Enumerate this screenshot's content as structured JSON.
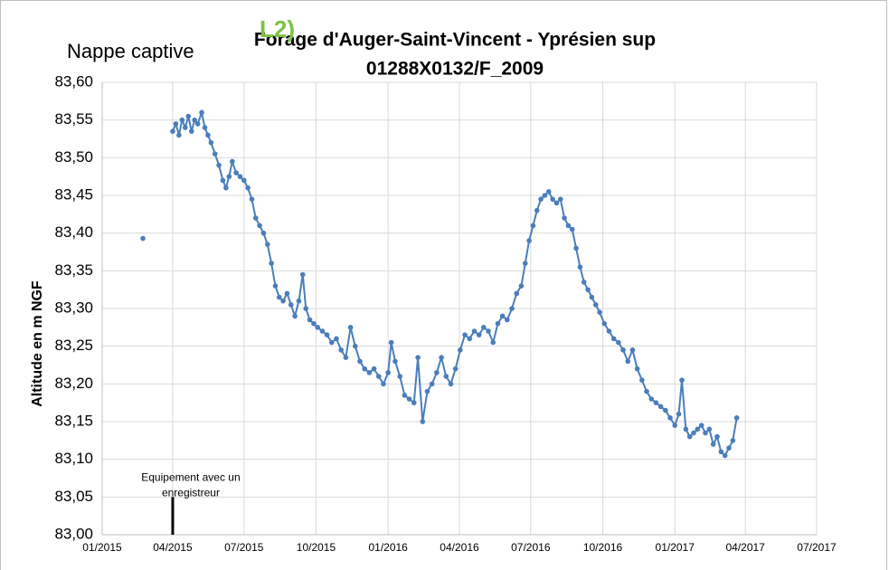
{
  "chart_data": {
    "type": "line",
    "title": "Forage d'Auger-Saint-Vincent - Yprésien sup",
    "subtitle": "01288X0132/F_2009",
    "badge": "L2)",
    "side_label": "Nappe captive",
    "y_label": "Altitude en m NGF",
    "annotation": {
      "text": "Equipement avec un enregistreur",
      "x": "2015-04-01",
      "y": [
        83.0,
        83.05
      ],
      "color": "#000000"
    },
    "grid": true,
    "xlim": [
      "2015-01-01",
      "2017-07-01"
    ],
    "xticks": [
      {
        "value": "2015-01-01",
        "label": "01/2015"
      },
      {
        "value": "2015-04-01",
        "label": "04/2015"
      },
      {
        "value": "2015-07-01",
        "label": "07/2015"
      },
      {
        "value": "2015-10-01",
        "label": "10/2015"
      },
      {
        "value": "2016-01-01",
        "label": "01/2016"
      },
      {
        "value": "2016-04-01",
        "label": "04/2016"
      },
      {
        "value": "2016-07-01",
        "label": "07/2016"
      },
      {
        "value": "2016-10-01",
        "label": "10/2016"
      },
      {
        "value": "2017-01-01",
        "label": "01/2017"
      },
      {
        "value": "2017-04-01",
        "label": "04/2017"
      },
      {
        "value": "2017-07-01",
        "label": "07/2017"
      }
    ],
    "ylim": [
      83.0,
      83.6
    ],
    "yticks": [
      {
        "value": 83.0,
        "label": "83,00"
      },
      {
        "value": 83.05,
        "label": "83,05"
      },
      {
        "value": 83.1,
        "label": "83,10"
      },
      {
        "value": 83.15,
        "label": "83,15"
      },
      {
        "value": 83.2,
        "label": "83,20"
      },
      {
        "value": 83.25,
        "label": "83,25"
      },
      {
        "value": 83.3,
        "label": "83,30"
      },
      {
        "value": 83.35,
        "label": "83,35"
      },
      {
        "value": 83.4,
        "label": "83,40"
      },
      {
        "value": 83.45,
        "label": "83,45"
      },
      {
        "value": 83.5,
        "label": "83,50"
      },
      {
        "value": 83.55,
        "label": "83,55"
      },
      {
        "value": 83.6,
        "label": "83,60"
      }
    ],
    "x": [
      "2015-02-22",
      "2015-03-15",
      "2015-04-01",
      "2015-04-05",
      "2015-04-09",
      "2015-04-13",
      "2015-04-17",
      "2015-04-21",
      "2015-04-25",
      "2015-04-29",
      "2015-05-03",
      "2015-05-08",
      "2015-05-12",
      "2015-05-16",
      "2015-05-20",
      "2015-05-25",
      "2015-05-30",
      "2015-06-04",
      "2015-06-08",
      "2015-06-12",
      "2015-06-16",
      "2015-06-21",
      "2015-06-26",
      "2015-07-01",
      "2015-07-06",
      "2015-07-11",
      "2015-07-16",
      "2015-07-21",
      "2015-07-26",
      "2015-07-31",
      "2015-08-05",
      "2015-08-10",
      "2015-08-15",
      "2015-08-20",
      "2015-08-25",
      "2015-08-30",
      "2015-09-04",
      "2015-09-09",
      "2015-09-14",
      "2015-09-18",
      "2015-09-23",
      "2015-09-28",
      "2015-10-03",
      "2015-10-09",
      "2015-10-15",
      "2015-10-21",
      "2015-10-27",
      "2015-11-02",
      "2015-11-08",
      "2015-11-14",
      "2015-11-20",
      "2015-11-26",
      "2015-12-02",
      "2015-12-08",
      "2015-12-14",
      "2015-12-20",
      "2015-12-26",
      "2016-01-01",
      "2016-01-05",
      "2016-01-10",
      "2016-01-16",
      "2016-01-22",
      "2016-01-28",
      "2016-02-03",
      "2016-02-08",
      "2016-02-14",
      "2016-02-20",
      "2016-02-26",
      "2016-03-03",
      "2016-03-09",
      "2016-03-15",
      "2016-03-21",
      "2016-03-27",
      "2016-04-02",
      "2016-04-08",
      "2016-04-14",
      "2016-04-20",
      "2016-04-26",
      "2016-05-02",
      "2016-05-08",
      "2016-05-14",
      "2016-05-20",
      "2016-05-26",
      "2016-06-01",
      "2016-06-07",
      "2016-06-13",
      "2016-06-19",
      "2016-06-24",
      "2016-06-29",
      "2016-07-04",
      "2016-07-09",
      "2016-07-14",
      "2016-07-19",
      "2016-07-24",
      "2016-07-29",
      "2016-08-03",
      "2016-08-08",
      "2016-08-13",
      "2016-08-18",
      "2016-08-23",
      "2016-08-28",
      "2016-09-02",
      "2016-09-07",
      "2016-09-12",
      "2016-09-17",
      "2016-09-22",
      "2016-09-27",
      "2016-10-03",
      "2016-10-09",
      "2016-10-15",
      "2016-10-21",
      "2016-10-27",
      "2016-11-02",
      "2016-11-08",
      "2016-11-14",
      "2016-11-20",
      "2016-11-26",
      "2016-12-02",
      "2016-12-08",
      "2016-12-14",
      "2016-12-20",
      "2016-12-26",
      "2017-01-01",
      "2017-01-06",
      "2017-01-10",
      "2017-01-15",
      "2017-01-20",
      "2017-01-25",
      "2017-01-30",
      "2017-02-04",
      "2017-02-09",
      "2017-02-14",
      "2017-02-19",
      "2017-02-24",
      "2017-03-01",
      "2017-03-06",
      "2017-03-11",
      "2017-03-16",
      "2017-03-21"
    ],
    "series": [
      {
        "name": "Altitude",
        "color": "#4a7ebb",
        "values": [
          83.393,
          null,
          83.535,
          83.545,
          83.53,
          83.55,
          83.54,
          83.555,
          83.535,
          83.55,
          83.545,
          83.56,
          83.54,
          83.53,
          83.52,
          83.505,
          83.49,
          83.47,
          83.46,
          83.475,
          83.495,
          83.48,
          83.475,
          83.47,
          83.46,
          83.445,
          83.42,
          83.41,
          83.4,
          83.385,
          83.36,
          83.33,
          83.315,
          83.31,
          83.32,
          83.305,
          83.29,
          83.31,
          83.345,
          83.3,
          83.285,
          83.28,
          83.275,
          83.27,
          83.265,
          83.255,
          83.26,
          83.245,
          83.235,
          83.275,
          83.25,
          83.23,
          83.22,
          83.215,
          83.22,
          83.21,
          83.2,
          83.215,
          83.255,
          83.23,
          83.21,
          83.185,
          83.18,
          83.175,
          83.235,
          83.15,
          83.19,
          83.2,
          83.215,
          83.235,
          83.21,
          83.2,
          83.22,
          83.245,
          83.265,
          83.26,
          83.27,
          83.265,
          83.275,
          83.27,
          83.255,
          83.28,
          83.29,
          83.285,
          83.3,
          83.32,
          83.33,
          83.36,
          83.39,
          83.41,
          83.43,
          83.445,
          83.45,
          83.455,
          83.445,
          83.44,
          83.445,
          83.42,
          83.41,
          83.405,
          83.38,
          83.355,
          83.335,
          83.325,
          83.315,
          83.305,
          83.295,
          83.28,
          83.27,
          83.26,
          83.255,
          83.245,
          83.23,
          83.245,
          83.22,
          83.205,
          83.19,
          83.18,
          83.175,
          83.17,
          83.165,
          83.155,
          83.145,
          83.16,
          83.205,
          83.14,
          83.13,
          83.135,
          83.14,
          83.145,
          83.135,
          83.14,
          83.12,
          83.13,
          83.11,
          83.105,
          83.115,
          83.125,
          83.155
        ]
      }
    ]
  }
}
